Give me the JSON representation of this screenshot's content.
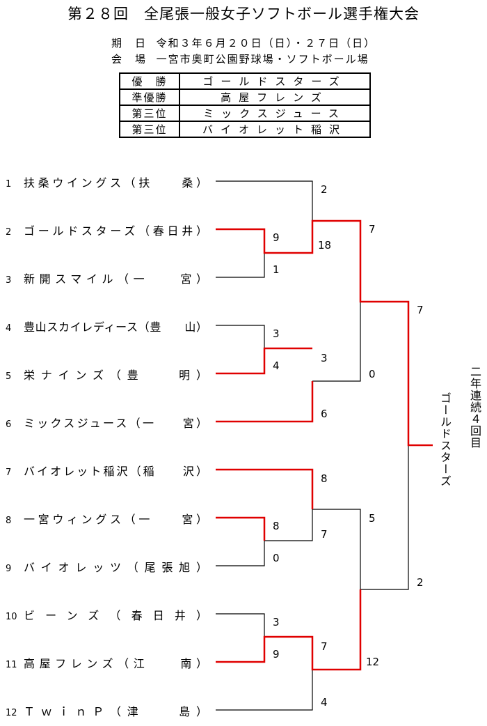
{
  "title": "第２８回　全尾張一般女子ソフトボール選手権大会",
  "info": {
    "date_label": "期　日",
    "date_value": "令和３年６月２０日（日）・２７日（日）",
    "venue_label": "会　場",
    "venue_value": "一宮市奥町公園野球場・ソフトボール場"
  },
  "results": [
    {
      "rank": "優　勝",
      "team": "ゴールドスターズ"
    },
    {
      "rank": "準優勝",
      "team": "高屋フレンズ"
    },
    {
      "rank": "第三位",
      "team": "ミックスジュース"
    },
    {
      "rank": "第三位",
      "team": "バイオレット稲沢"
    }
  ],
  "teams": [
    {
      "no": "1",
      "name": "扶桑ウイングス（扶　　桑）"
    },
    {
      "no": "2",
      "name": "ゴールドスターズ（春日井）"
    },
    {
      "no": "3",
      "name": "新開スマイル（一　　宮）"
    },
    {
      "no": "4",
      "name": "豊山スカイレディース（豊　　山）"
    },
    {
      "no": "5",
      "name": "栄ナインズ（豊　　明）"
    },
    {
      "no": "6",
      "name": "ミックスジュース（一　　宮）"
    },
    {
      "no": "7",
      "name": "バイオレット稲沢（稲　　沢）"
    },
    {
      "no": "8",
      "name": "一宮ウィングス（一　　宮）"
    },
    {
      "no": "9",
      "name": "バイオレッツ（尾張旭）"
    },
    {
      "no": "10",
      "name": "ビーンズ（春日井）"
    },
    {
      "no": "11",
      "name": "高屋フレンズ（江　　南）"
    },
    {
      "no": "12",
      "name": "ＴｗｉｎＰ（津　　島）"
    }
  ],
  "scores": {
    "r1_2v3_top": "9",
    "r1_2v3_bot": "1",
    "r1_4v5_top": "3",
    "r1_4v5_bot": "4",
    "r1_8v9_top": "8",
    "r1_8v9_bot": "0",
    "r1_10v11_top": "3",
    "r1_10v11_bot": "9",
    "r2_1_top": "2",
    "r2_1_bot": "18",
    "r2_2_top": "3",
    "r2_2_bot": "6",
    "r2_3_top": "8",
    "r2_3_bot": "7",
    "r2_4_top": "7",
    "r2_4_bot": "4",
    "sf1_top": "7",
    "sf1_bot": "0",
    "sf2_top": "5",
    "sf2_bot": "12",
    "f_top": "7",
    "f_bot": "2"
  },
  "champion_vertical": "ゴールドスターズ",
  "note_vertical": "二年連続４回目",
  "colors": {
    "winner_line": "#e00000",
    "line": "#000000"
  }
}
